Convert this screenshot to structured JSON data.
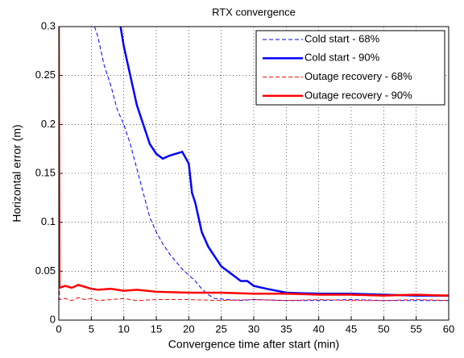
{
  "chart_data": {
    "type": "line",
    "title": "RTX convergence",
    "xlabel": "Convergence time after start (min)",
    "ylabel": "Horizontal error (m)",
    "xlim": [
      0,
      60
    ],
    "ylim": [
      0,
      0.3
    ],
    "xticks": [
      0,
      5,
      10,
      15,
      20,
      25,
      30,
      35,
      40,
      45,
      50,
      55,
      60
    ],
    "yticks": [
      0,
      0.05,
      0.1,
      0.15,
      0.2,
      0.25,
      0.3
    ],
    "grid": true,
    "legend": "upper right",
    "series": [
      {
        "name": "Cold start - 68%",
        "color": "#0000ff",
        "dash": true,
        "linewidth": 1,
        "x": [
          5.5,
          6,
          7,
          8,
          9,
          10,
          11,
          12,
          13,
          14,
          15,
          16,
          17,
          18,
          19,
          20,
          21,
          22,
          23,
          24,
          26,
          28,
          30,
          35,
          40,
          45,
          50,
          55,
          60
        ],
        "values": [
          0.3,
          0.29,
          0.26,
          0.24,
          0.215,
          0.2,
          0.18,
          0.155,
          0.13,
          0.105,
          0.09,
          0.078,
          0.068,
          0.06,
          0.052,
          0.046,
          0.04,
          0.032,
          0.026,
          0.022,
          0.021,
          0.02,
          0.021,
          0.02,
          0.02,
          0.021,
          0.02,
          0.02,
          0.02
        ]
      },
      {
        "name": "Cold start - 90%",
        "color": "#0000ff",
        "dash": false,
        "linewidth": 2.5,
        "x": [
          9.5,
          10,
          11,
          12,
          13,
          14,
          15,
          16,
          17,
          18,
          19,
          20,
          20.5,
          21,
          22,
          23,
          24,
          25,
          26,
          27,
          28,
          29,
          30,
          32,
          35,
          40,
          45,
          50,
          55,
          60
        ],
        "values": [
          0.3,
          0.28,
          0.25,
          0.22,
          0.2,
          0.18,
          0.17,
          0.165,
          0.168,
          0.17,
          0.172,
          0.16,
          0.13,
          0.12,
          0.09,
          0.075,
          0.065,
          0.055,
          0.05,
          0.045,
          0.04,
          0.04,
          0.035,
          0.032,
          0.028,
          0.027,
          0.027,
          0.026,
          0.025,
          0.025
        ]
      },
      {
        "name": "Outage recovery - 68%",
        "color": "#ff0000",
        "dash": true,
        "linewidth": 1,
        "x": [
          0,
          0.1,
          1,
          2,
          3,
          4,
          5,
          6,
          8,
          10,
          12,
          15,
          20,
          25,
          30,
          35,
          40,
          45,
          50,
          55,
          60
        ],
        "values": [
          0.3,
          0.021,
          0.022,
          0.02,
          0.023,
          0.021,
          0.022,
          0.02,
          0.021,
          0.022,
          0.02,
          0.021,
          0.021,
          0.02,
          0.021,
          0.02,
          0.021,
          0.02,
          0.02,
          0.021,
          0.02
        ]
      },
      {
        "name": "Outage recovery - 90%",
        "color": "#ff0000",
        "dash": false,
        "linewidth": 2.5,
        "x": [
          0,
          0.1,
          1,
          2,
          3,
          4,
          5,
          6,
          8,
          10,
          12,
          15,
          20,
          25,
          30,
          35,
          40,
          45,
          50,
          55,
          60
        ],
        "values": [
          0.3,
          0.033,
          0.035,
          0.033,
          0.036,
          0.034,
          0.032,
          0.031,
          0.032,
          0.03,
          0.031,
          0.029,
          0.028,
          0.028,
          0.027,
          0.027,
          0.026,
          0.026,
          0.025,
          0.026,
          0.025
        ]
      }
    ]
  }
}
